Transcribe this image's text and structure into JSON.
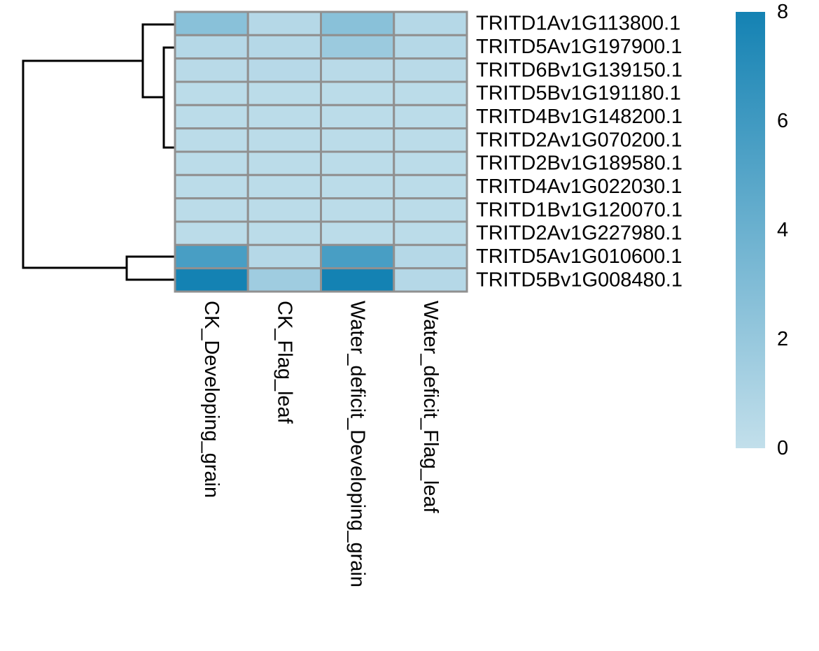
{
  "chart_data": {
    "type": "heatmap",
    "title": "",
    "xlabel": "",
    "ylabel": "",
    "rows": [
      "TRITD1Av1G113800.1",
      "TRITD5Av1G197900.1",
      "TRITD6Bv1G139150.1",
      "TRITD5Bv1G191180.1",
      "TRITD4Bv1G148200.1",
      "TRITD2Av1G070200.1",
      "TRITD2Bv1G189580.1",
      "TRITD4Av1G022030.1",
      "TRITD1Bv1G120070.1",
      "TRITD2Av1G227980.1",
      "TRITD5Av1G010600.1",
      "TRITD5Bv1G008480.1"
    ],
    "columns": [
      "CK_Developing_grain",
      "CK_Flag_leaf",
      "Water_deficit_Developing_grain",
      "Water_deficit_Flag_leaf"
    ],
    "values": [
      [
        2.6,
        0.6,
        2.6,
        0.6
      ],
      [
        0.6,
        0.6,
        1.8,
        0.6
      ],
      [
        0.4,
        0.5,
        0.4,
        0.4
      ],
      [
        0.3,
        0.3,
        0.3,
        0.3
      ],
      [
        0.3,
        0.3,
        0.3,
        0.3
      ],
      [
        0.3,
        0.3,
        0.3,
        0.3
      ],
      [
        0.3,
        0.3,
        0.3,
        0.3
      ],
      [
        0.3,
        0.3,
        0.3,
        0.3
      ],
      [
        0.3,
        0.3,
        0.3,
        0.3
      ],
      [
        0.3,
        0.3,
        0.3,
        0.3
      ],
      [
        5.6,
        0.6,
        5.6,
        0.6
      ],
      [
        8.0,
        1.6,
        8.0,
        0.6
      ]
    ],
    "color_scale": {
      "min": 0,
      "max": 8,
      "low_color": "#c2dfeb",
      "high_color": "#1482b3",
      "ticks": [
        0,
        2,
        4,
        6,
        8
      ]
    },
    "cell_border_color": "#909090",
    "legend_position": "right",
    "row_dendrogram": true
  }
}
